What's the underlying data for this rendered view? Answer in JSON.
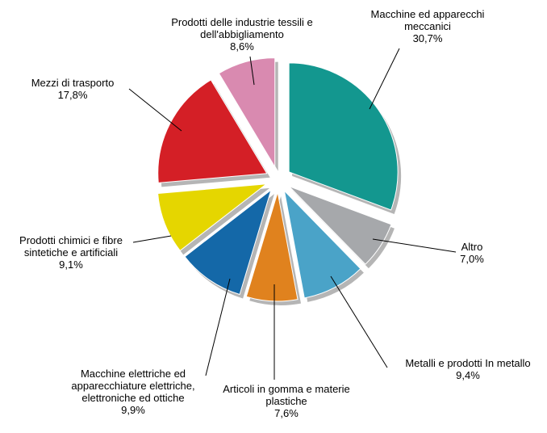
{
  "chart_data": {
    "type": "pie",
    "categories": [
      "Macchine ed apparecchi meccanici",
      "Altro",
      "Metalli e prodotti In metallo",
      "Articoli in gomma e materie plastiche",
      "Macchine elettriche ed apparecchiature elettriche, elettroniche ed ottiche",
      "Prodotti chimici e fibre sintetiche e artificiali",
      "Mezzi di trasporto",
      "Prodotti delle industrie tessili e dell'abbigliamento"
    ],
    "values": [
      30.7,
      7.0,
      9.4,
      7.6,
      9.9,
      9.1,
      17.8,
      8.6
    ],
    "value_labels": [
      "30,7%",
      "7,0%",
      "9,4%",
      "7,6%",
      "9,9%",
      "9,1%",
      "17,8%",
      "8,6%"
    ],
    "colors": [
      "#13978f",
      "#a6a8ab",
      "#4aa3c8",
      "#e0821e",
      "#1468a8",
      "#e5d600",
      "#d41f26",
      "#d98ab0"
    ]
  }
}
